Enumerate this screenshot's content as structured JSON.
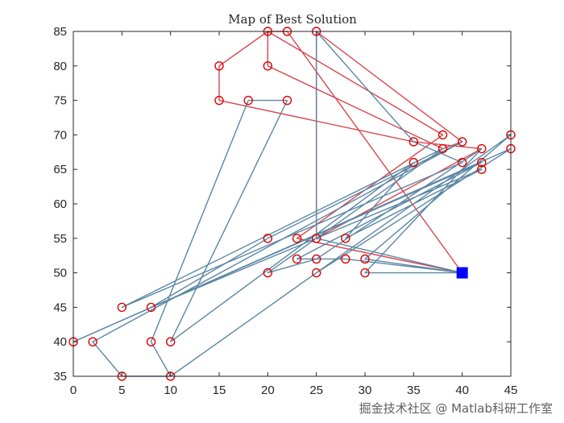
{
  "chart_data": {
    "type": "line",
    "title": "Map of Best Solution",
    "xlabel": "",
    "ylabel": "",
    "xlim": [
      0,
      45
    ],
    "ylim": [
      35,
      85
    ],
    "xticks": [
      0,
      5,
      10,
      15,
      20,
      25,
      30,
      35,
      40,
      45
    ],
    "yticks": [
      35,
      40,
      45,
      50,
      55,
      60,
      65,
      70,
      75,
      80,
      85
    ],
    "grid": false,
    "colors": {
      "route_blue": "#5b87a5",
      "route_red": "#d9454e",
      "customer_marker": "#e00000",
      "depot_marker": "#0000ff",
      "axes": "#262626"
    },
    "depot": {
      "x": 40,
      "y": 50
    },
    "customers": [
      {
        "x": 20,
        "y": 85
      },
      {
        "x": 22,
        "y": 85
      },
      {
        "x": 25,
        "y": 85
      },
      {
        "x": 15,
        "y": 80
      },
      {
        "x": 20,
        "y": 80
      },
      {
        "x": 15,
        "y": 75
      },
      {
        "x": 18,
        "y": 75
      },
      {
        "x": 22,
        "y": 75
      },
      {
        "x": 38,
        "y": 70
      },
      {
        "x": 45,
        "y": 70
      },
      {
        "x": 35,
        "y": 69
      },
      {
        "x": 40,
        "y": 69
      },
      {
        "x": 38,
        "y": 68
      },
      {
        "x": 42,
        "y": 68
      },
      {
        "x": 45,
        "y": 68
      },
      {
        "x": 35,
        "y": 66
      },
      {
        "x": 40,
        "y": 66
      },
      {
        "x": 42,
        "y": 66
      },
      {
        "x": 42,
        "y": 65
      },
      {
        "x": 20,
        "y": 55
      },
      {
        "x": 23,
        "y": 55
      },
      {
        "x": 25,
        "y": 55
      },
      {
        "x": 28,
        "y": 55
      },
      {
        "x": 23,
        "y": 52
      },
      {
        "x": 25,
        "y": 52
      },
      {
        "x": 28,
        "y": 52
      },
      {
        "x": 30,
        "y": 52
      },
      {
        "x": 20,
        "y": 50
      },
      {
        "x": 25,
        "y": 50
      },
      {
        "x": 30,
        "y": 50
      },
      {
        "x": 5,
        "y": 45
      },
      {
        "x": 8,
        "y": 45
      },
      {
        "x": 0,
        "y": 40
      },
      {
        "x": 2,
        "y": 40
      },
      {
        "x": 8,
        "y": 40
      },
      {
        "x": 10,
        "y": 40
      },
      {
        "x": 5,
        "y": 35
      },
      {
        "x": 10,
        "y": 35
      }
    ],
    "routes": [
      {
        "color": "route_red",
        "points": [
          [
            40,
            50
          ],
          [
            22,
            85
          ],
          [
            20,
            85
          ],
          [
            20,
            80
          ],
          [
            38,
            68
          ],
          [
            40,
            69
          ],
          [
            25,
            85
          ],
          [
            25,
            55
          ],
          [
            42,
            68
          ],
          [
            35,
            69
          ],
          [
            15,
            75
          ],
          [
            15,
            80
          ],
          [
            20,
            85
          ],
          [
            38,
            70
          ],
          [
            23,
            55
          ],
          [
            40,
            50
          ]
        ]
      },
      {
        "color": "route_blue",
        "points": [
          [
            40,
            50
          ],
          [
            28,
            52
          ],
          [
            23,
            52
          ],
          [
            42,
            66
          ],
          [
            0,
            40
          ],
          [
            45,
            68
          ],
          [
            25,
            50
          ],
          [
            10,
            35
          ],
          [
            5,
            35
          ],
          [
            2,
            40
          ],
          [
            40,
            69
          ],
          [
            20,
            55
          ],
          [
            8,
            45
          ],
          [
            42,
            65
          ],
          [
            28,
            55
          ],
          [
            35,
            66
          ],
          [
            10,
            40
          ],
          [
            22,
            75
          ],
          [
            18,
            75
          ],
          [
            8,
            40
          ],
          [
            10,
            35
          ],
          [
            45,
            70
          ],
          [
            30,
            52
          ],
          [
            40,
            50
          ]
        ]
      },
      {
        "color": "route_blue",
        "points": [
          [
            40,
            50
          ],
          [
            30,
            50
          ],
          [
            42,
            68
          ],
          [
            25,
            52
          ],
          [
            20,
            50
          ],
          [
            38,
            68
          ],
          [
            5,
            45
          ],
          [
            40,
            66
          ],
          [
            35,
            69
          ],
          [
            25,
            85
          ],
          [
            25,
            55
          ],
          [
            40,
            50
          ]
        ]
      }
    ]
  },
  "watermark": "掘金技术社区 @ Matlab科研工作室"
}
